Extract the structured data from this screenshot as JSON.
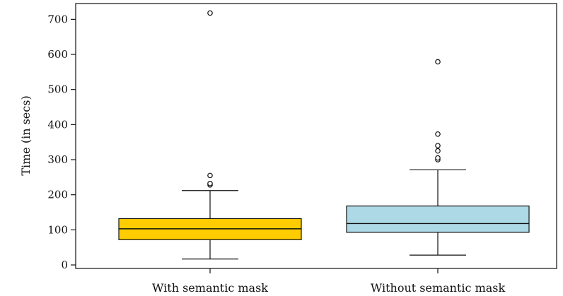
{
  "chart_data": {
    "type": "box",
    "title": "",
    "xlabel": "",
    "ylabel": "Time (in secs)",
    "ylim": [
      -10,
      745
    ],
    "yticks": [
      0,
      100,
      200,
      300,
      400,
      500,
      600,
      700
    ],
    "grid": false,
    "categories": [
      "With semantic mask",
      "Without semantic mask"
    ],
    "boxes": [
      {
        "category": "With semantic mask",
        "color": "#FFCC00",
        "whisker_low": 17,
        "q1": 72,
        "median": 103,
        "q3": 132,
        "whisker_high": 212,
        "outliers": [
          228,
          232,
          255,
          718
        ]
      },
      {
        "category": "Without semantic mask",
        "color": "#ADD8E6",
        "whisker_low": 28,
        "q1": 93,
        "median": 118,
        "q3": 168,
        "whisker_high": 271,
        "outliers": [
          300,
          305,
          325,
          340,
          373,
          579
        ]
      }
    ]
  }
}
